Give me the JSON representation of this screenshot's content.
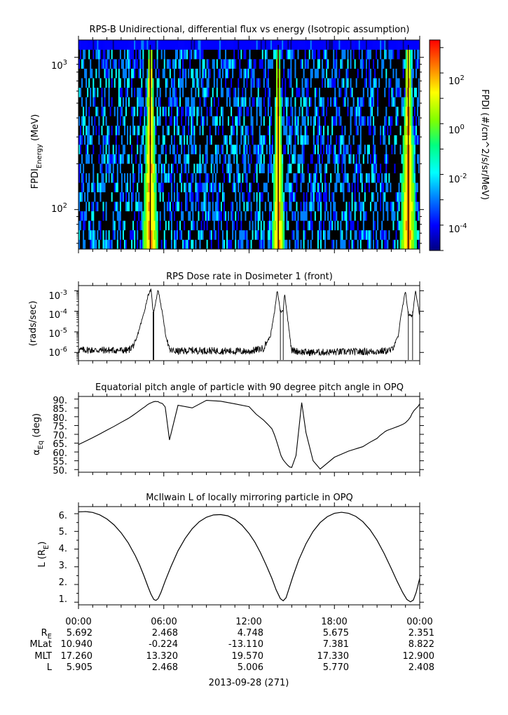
{
  "chart_data": [
    {
      "type": "heatmap",
      "title": "RPS-B  Unidirectional, differential flux vs energy (Isotropic assumption)",
      "ylabel_main": "FPDI",
      "ylabel_sub": "Energy",
      "ylabel_unit": " (MeV)",
      "yscale": "log",
      "ylim": [
        55,
        1300
      ],
      "yticks": [
        {
          "base": "10",
          "exp": "2",
          "value": 100
        },
        {
          "base": "10",
          "exp": "3",
          "value": 1000
        }
      ],
      "xlim_hours": [
        0,
        24
      ],
      "bright_bands_hours": [
        [
          4.5,
          5.6
        ],
        [
          13.6,
          14.5
        ],
        [
          22.6,
          23.8
        ]
      ],
      "colorbar": {
        "label": "FPDI (#/cm^2/s/sr/MeV)",
        "scale": "log",
        "range_exp": [
          -5,
          3.3
        ],
        "ticks": [
          {
            "base": "10",
            "exp": "2",
            "value": 2
          },
          {
            "base": "10",
            "exp": "0",
            "value": 0
          },
          {
            "base": "10",
            "exp": "-2",
            "value": -2
          },
          {
            "base": "10",
            "exp": "-4",
            "value": -4
          }
        ],
        "colors": [
          "#000080",
          "#0000ff",
          "#0080ff",
          "#00ffff",
          "#00ff80",
          "#80ff00",
          "#ffff00",
          "#ff8000",
          "#ff0000"
        ]
      }
    },
    {
      "type": "line",
      "title": "RPS  Dose rate in Dosimeter 1 (front)",
      "ylabel": "(rads/sec)",
      "yscale": "log",
      "ylim_exp": [
        -6.4,
        -2.75
      ],
      "yticks": [
        {
          "base": "10",
          "exp": "-3",
          "value": -3
        },
        {
          "base": "10",
          "exp": "-4",
          "value": -4
        },
        {
          "base": "10",
          "exp": "-5",
          "value": -5
        },
        {
          "base": "10",
          "exp": "-6",
          "value": -6
        }
      ],
      "xlim_hours": [
        0,
        24
      ],
      "series_keypoints": {
        "x_hours": [
          0,
          3.5,
          4.0,
          4.3,
          4.6,
          4.9,
          5.1,
          5.25,
          5.3,
          5.6,
          5.75,
          6.0,
          6.1,
          6.4,
          7.0,
          8.0,
          12.0,
          13.0,
          13.5,
          13.8,
          13.95,
          14.0,
          14.2,
          14.4,
          14.5,
          14.7,
          15.0,
          16.0,
          21.0,
          22.0,
          22.5,
          22.7,
          23.0,
          23.2,
          23.5,
          23.7,
          24.0
        ],
        "log10_values": [
          -5.88,
          -5.9,
          -5.55,
          -4.8,
          -4.1,
          -3.2,
          -2.95,
          -4.0,
          -4.0,
          -2.95,
          -3.5,
          -4.5,
          -5.05,
          -5.9,
          -5.95,
          -5.9,
          -5.95,
          -5.8,
          -5.2,
          -4.0,
          -3.1,
          -3.05,
          -4.0,
          -4.0,
          -3.1,
          -4.3,
          -5.9,
          -6.0,
          -5.95,
          -5.9,
          -5.2,
          -4.1,
          -3.0,
          -4.2,
          -4.2,
          -2.95,
          -4.2
        ]
      },
      "dropouts_hours": [
        5.25,
        5.3,
        14.2,
        14.4,
        23.2,
        23.5
      ]
    },
    {
      "type": "line",
      "title": "Equatorial pitch angle of particle with 90 degree pitch angle in OPQ",
      "ylabel_main": "α",
      "ylabel_sub": "Eq",
      "ylabel_unit": " (deg)",
      "ylim": [
        48.5,
        91.5
      ],
      "yticks": [
        90,
        85,
        80,
        75,
        70,
        65,
        60,
        55,
        50
      ],
      "ytick_labels": [
        "90.",
        "85.",
        "80.",
        "75.",
        "70.",
        "65.",
        "60.",
        "55.",
        "50."
      ],
      "xlim_hours": [
        0,
        24
      ],
      "series_keypoints": {
        "x_hours": [
          0,
          0.5,
          1.0,
          1.5,
          2.0,
          2.5,
          3.0,
          3.5,
          3.8,
          4.1,
          4.3,
          4.5,
          4.7,
          4.85,
          5.0,
          5.12,
          5.25,
          5.4,
          5.5,
          5.6,
          5.7,
          5.9,
          6.1,
          6.4,
          7.0,
          8.0,
          9.0,
          10.0,
          11.0,
          12.0,
          12.5,
          13.0,
          13.3,
          13.6,
          13.75,
          13.85,
          13.95,
          14.05,
          14.15,
          14.25,
          14.4,
          14.55,
          14.7,
          14.85,
          15.0,
          15.3,
          15.7,
          16.0,
          16.5,
          17.0,
          18.0,
          19.0,
          20.0,
          20.5,
          21.0,
          21.2,
          21.4,
          21.55,
          21.7,
          21.9,
          22.2,
          22.5,
          22.8,
          23.0,
          23.2,
          23.35,
          23.45,
          23.6,
          23.75,
          23.9,
          24.0
        ],
        "values": [
          64.2,
          66.1,
          68.1,
          70.2,
          72.4,
          74.5,
          76.8,
          79.0,
          80.6,
          82.3,
          83.5,
          84.7,
          85.8,
          86.8,
          87.5,
          87.9,
          88.4,
          88.7,
          88.6,
          88.6,
          88.0,
          87.5,
          85.5,
          66.8,
          86.5,
          85.0,
          89.3,
          88.8,
          87.3,
          85.7,
          81.4,
          78.2,
          75.8,
          73.2,
          70.4,
          68.2,
          65.7,
          63.1,
          60.4,
          57.8,
          55.5,
          54.0,
          52.6,
          51.5,
          51.2,
          58.0,
          88.0,
          71.0,
          55.0,
          50.3,
          57.0,
          60.5,
          63.0,
          65.5,
          67.7,
          69.3,
          70.5,
          71.5,
          72.2,
          72.8,
          73.7,
          74.6,
          75.6,
          76.6,
          78.2,
          79.8,
          81.6,
          83.5,
          84.8,
          86.0,
          87.3
        ]
      }
    },
    {
      "type": "line",
      "title": "McIlwain L of locally mirroring particle in OPQ",
      "ylabel_main": "L (R",
      "ylabel_sub": "E",
      "ylabel_unit": ")",
      "ylim": [
        0.85,
        6.4
      ],
      "yticks": [
        6,
        5,
        4,
        3,
        2,
        1
      ],
      "ytick_labels": [
        "6.",
        "5.",
        "4.",
        "3.",
        "2.",
        "1."
      ],
      "xlim_hours": [
        0,
        24
      ],
      "series_keypoints": {
        "x_hours": [
          0,
          0.5,
          1.0,
          1.5,
          2.0,
          2.5,
          3.0,
          3.5,
          4.0,
          4.3,
          4.6,
          4.9,
          5.1,
          5.3,
          5.45,
          5.6,
          5.8,
          6.1,
          6.5,
          7.0,
          7.5,
          8.0,
          8.5,
          9.0,
          9.5,
          10.0,
          10.5,
          11.0,
          11.5,
          12.0,
          12.4,
          12.8,
          13.2,
          13.6,
          13.9,
          14.2,
          14.4,
          14.6,
          14.8,
          15.1,
          15.5,
          16.0,
          16.5,
          17.0,
          17.5,
          18.0,
          18.5,
          19.0,
          19.5,
          20.0,
          20.5,
          21.0,
          21.5,
          22.0,
          22.4,
          22.8,
          23.1,
          23.35,
          23.55,
          23.75,
          24.0
        ],
        "values": [
          6.1,
          6.12,
          6.07,
          5.93,
          5.7,
          5.37,
          4.92,
          4.35,
          3.62,
          3.1,
          2.5,
          1.85,
          1.45,
          1.15,
          1.1,
          1.2,
          1.55,
          2.2,
          3.0,
          3.9,
          4.6,
          5.15,
          5.55,
          5.8,
          5.93,
          5.95,
          5.88,
          5.68,
          5.35,
          4.88,
          4.4,
          3.8,
          3.1,
          2.35,
          1.7,
          1.2,
          1.08,
          1.25,
          1.75,
          2.5,
          3.4,
          4.3,
          5.0,
          5.5,
          5.83,
          6.02,
          6.08,
          6.02,
          5.85,
          5.55,
          5.1,
          4.5,
          3.75,
          2.9,
          2.2,
          1.55,
          1.15,
          1.02,
          1.12,
          1.55,
          2.35
        ]
      }
    }
  ],
  "xaxis": {
    "tick_labels": [
      "00:00",
      "06:00",
      "12:00",
      "18:00",
      "00:00"
    ],
    "date_label": "2013-09-28 (271)"
  },
  "ephemeris": {
    "rows": [
      {
        "label": "R",
        "label_sub": "E",
        "values": [
          "5.692",
          "2.468",
          "4.748",
          "5.675",
          "2.351"
        ]
      },
      {
        "label": "MLat",
        "label_sub": "",
        "values": [
          "10.940",
          "-0.224",
          "-13.110",
          "7.381",
          "8.822"
        ]
      },
      {
        "label": "MLT",
        "label_sub": "",
        "values": [
          "17.260",
          "13.320",
          "19.570",
          "17.330",
          "12.900"
        ]
      },
      {
        "label": "L",
        "label_sub": "",
        "values": [
          "5.905",
          "2.468",
          "5.006",
          "5.770",
          "2.408"
        ]
      }
    ]
  }
}
